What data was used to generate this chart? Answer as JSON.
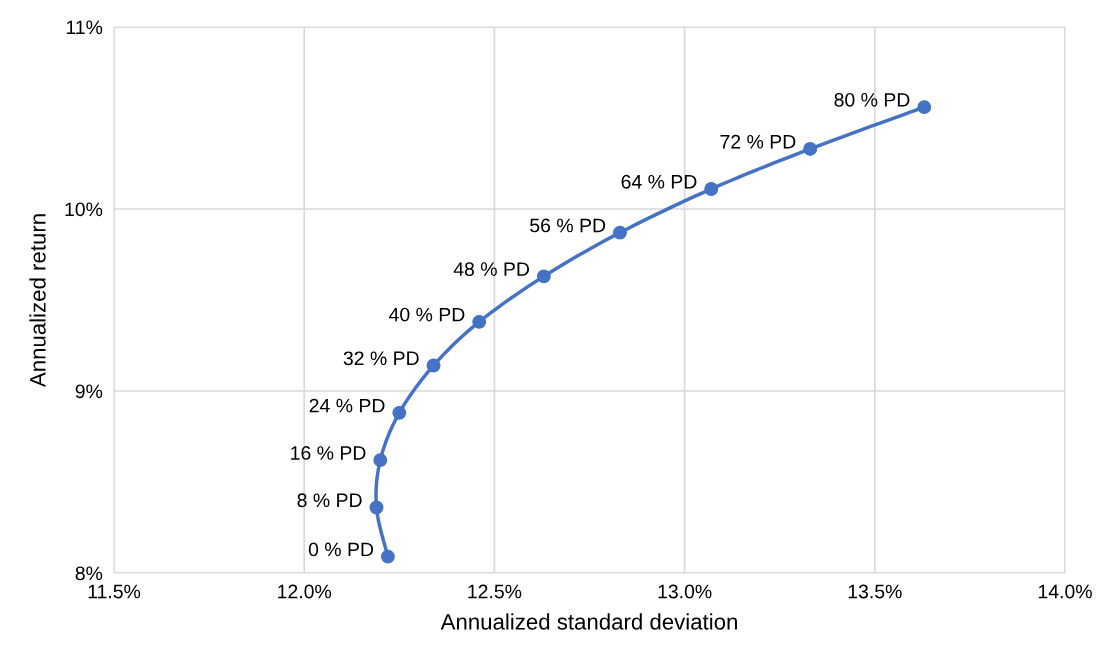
{
  "chart_data": {
    "type": "line",
    "xlabel": "Annualized standard deviation",
    "ylabel": "Annualized return",
    "x": [
      12.22,
      12.19,
      12.2,
      12.25,
      12.34,
      12.46,
      12.63,
      12.83,
      13.07,
      13.33,
      13.63
    ],
    "series": [
      {
        "color": "#4472c4",
        "values": [
          8.09,
          8.36,
          8.62,
          8.88,
          9.14,
          9.38,
          9.63,
          9.87,
          10.11,
          10.33,
          10.56
        ]
      }
    ],
    "value_labels": [
      "0 % PD",
      "8 % PD",
      "16 % PD",
      "24 % PD",
      "32 % PD",
      "40 % PD",
      "48 % PD",
      "56 % PD",
      "64 % PD",
      "72 % PD",
      "80 % PD"
    ],
    "xlim": [
      11.5,
      14.0
    ],
    "xticks": [
      {
        "value": 11.5,
        "label": "11.5%"
      },
      {
        "value": 12.0,
        "label": "12.0%"
      },
      {
        "value": 12.5,
        "label": "12.5%"
      },
      {
        "value": 13.0,
        "label": "13.0%"
      },
      {
        "value": 13.5,
        "label": "13.5%"
      },
      {
        "value": 14.0,
        "label": "14.0%"
      }
    ],
    "ylim": [
      8,
      11
    ],
    "yticks": [
      {
        "value": 8,
        "label": "8%"
      },
      {
        "value": 9,
        "label": "9%"
      },
      {
        "value": 10,
        "label": "10%"
      },
      {
        "value": 11,
        "label": "11%"
      }
    ],
    "grid": true,
    "marker": "circle",
    "line_style": "solid",
    "legend": false
  }
}
